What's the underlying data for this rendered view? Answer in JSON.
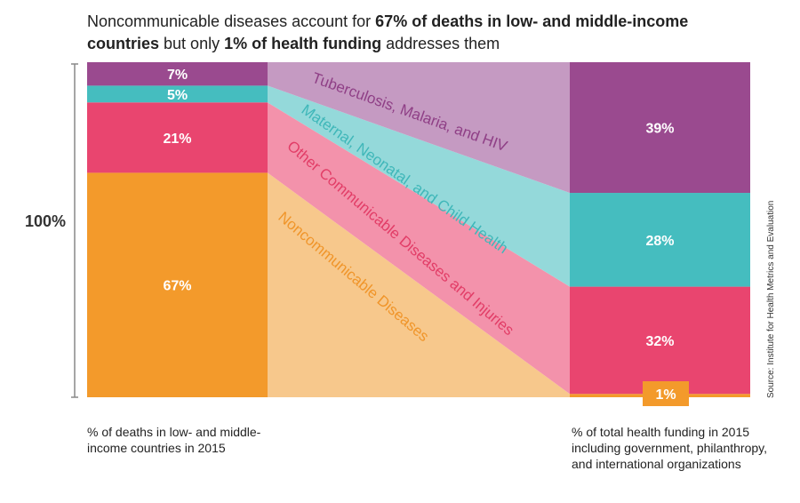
{
  "title": {
    "part1": "Noncommunicable diseases account for ",
    "bold1": "67% of deaths in low- and middle-income countries",
    "part2": " but only ",
    "bold2": "1% of health funding",
    "part3": " addresses them"
  },
  "scale_label": "100%",
  "source": "Source: Institute for Health Metrics and Evaluation",
  "left_caption": "% of deaths in low- and middle-income countries in 2015",
  "right_caption": "% of total health funding in 2015 including government, philanthropy, and international organizations",
  "colors": {
    "tb": "#9a4a8f",
    "tb_light": "#c59ac2",
    "maternal": "#45bdbf",
    "maternal_light": "#94d9da",
    "other": "#e9456f",
    "other_light": "#f392ab",
    "ncd": "#f39a2b",
    "ncd_light": "#f7c88c"
  },
  "chart_data": {
    "type": "bar",
    "subtype": "100% stacked with flow connectors",
    "categories": [
      "% of deaths in low- and middle-income countries in 2015",
      "% of total health funding in 2015 including government, philanthropy, and international organizations"
    ],
    "series": [
      {
        "name": "Noncommunicable Diseases",
        "values": [
          67,
          1
        ],
        "color": "ncd",
        "labels": [
          "67%",
          "1%"
        ]
      },
      {
        "name": "Other Communicable Diseases and Injuries",
        "values": [
          21,
          32
        ],
        "color": "other",
        "labels": [
          "21%",
          "32%"
        ]
      },
      {
        "name": "Maternal, Neonatal, and Child Health",
        "values": [
          5,
          28
        ],
        "color": "maternal",
        "labels": [
          "5%",
          "28%"
        ]
      },
      {
        "name": "Tuberculosis, Malaria, and HIV",
        "values": [
          7,
          39
        ],
        "color": "tb",
        "labels": [
          "7%",
          "39%"
        ]
      }
    ],
    "ylim": [
      0,
      100
    ]
  }
}
